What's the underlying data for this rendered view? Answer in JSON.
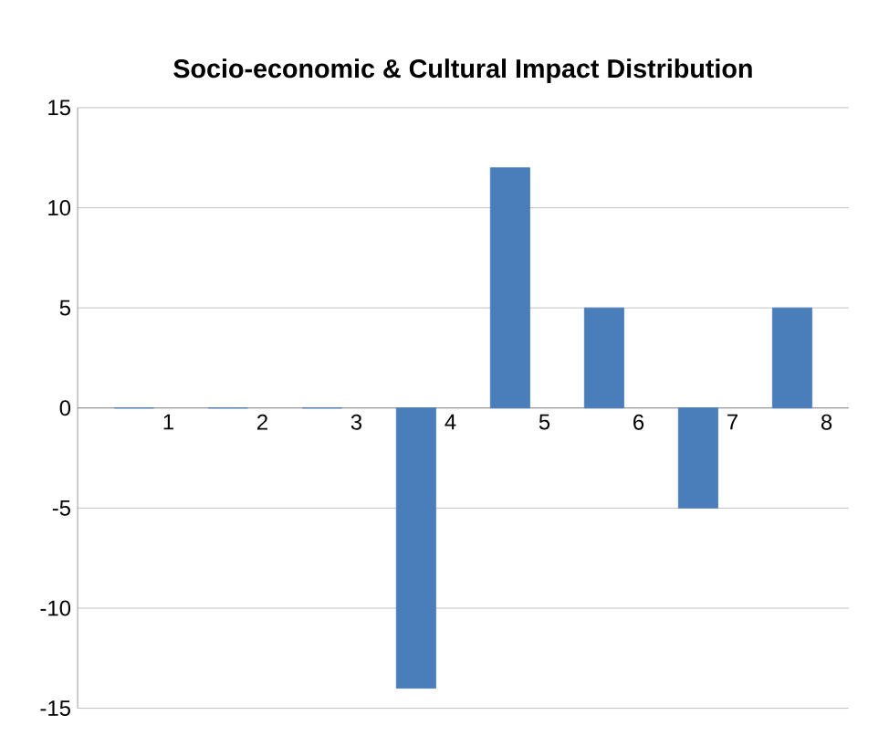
{
  "chart_data": {
    "type": "bar",
    "title": "Socio-economic & Cultural Impact Distribution",
    "categories": [
      "1",
      "2",
      "3",
      "4",
      "5",
      "6",
      "7",
      "8"
    ],
    "values": [
      0,
      0,
      0,
      -14,
      12,
      5,
      -5,
      5
    ],
    "color": "#4a7ebb",
    "ylim": [
      -15,
      15
    ],
    "yticks": [
      -15,
      -10,
      -5,
      0,
      5,
      10,
      15
    ],
    "grid": "y"
  }
}
